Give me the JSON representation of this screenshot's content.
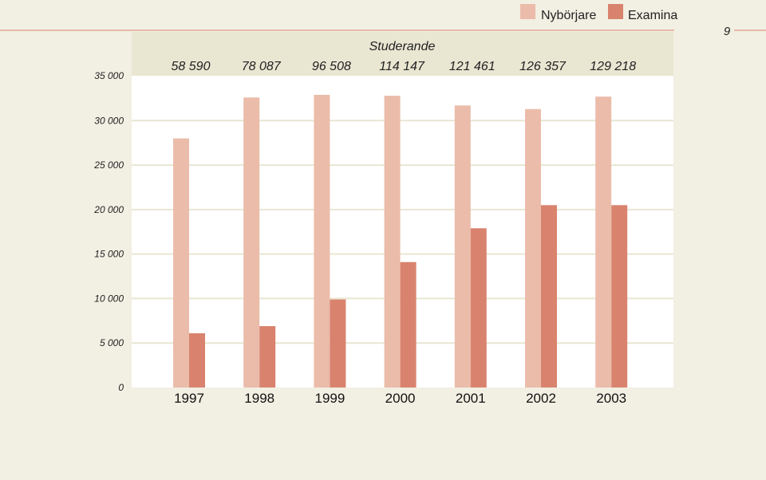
{
  "page_number": "9",
  "chart_data": {
    "type": "bar",
    "categories": [
      "1997",
      "1998",
      "1999",
      "2000",
      "2001",
      "2002",
      "2003"
    ],
    "series": [
      {
        "name": "Nybörjare",
        "values": [
          28000,
          32600,
          32900,
          32800,
          31700,
          31300,
          32700
        ]
      },
      {
        "name": "Examina",
        "values": [
          6100,
          6900,
          9900,
          14100,
          17900,
          20500,
          20500
        ]
      }
    ],
    "colors": {
      "Nybörjare": "#ebbcaa",
      "Examina": "#d9836e",
      "header_band": "#e9e6d2",
      "plot_bg": "#ffffff",
      "grid": "#e9e6d2"
    },
    "studerande_title": "Studerande",
    "studerande_values": [
      "58 590",
      "78 087",
      "96 508",
      "114 147",
      "121 461",
      "126 357",
      "129 218"
    ],
    "ylim": [
      0,
      35000
    ],
    "yticks": [
      0,
      5000,
      10000,
      15000,
      20000,
      25000,
      30000,
      35000
    ],
    "ytick_labels": [
      "0",
      "5 000",
      "10 000",
      "15 000",
      "20 000",
      "25 000",
      "30 000",
      "35 000"
    ],
    "legend_position": "top-right",
    "grid": true
  }
}
